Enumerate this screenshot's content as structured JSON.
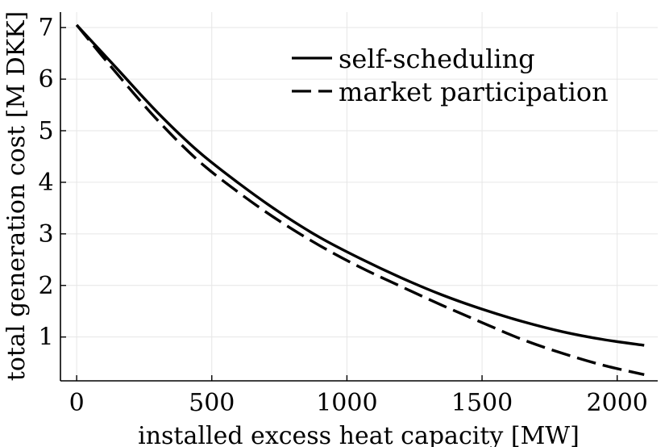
{
  "chart_data": {
    "type": "line",
    "title": "",
    "xlabel": "installed excess heat capacity [MW]",
    "ylabel": "total generation cost [M DKK]",
    "xlim": [
      -60,
      2150
    ],
    "ylim": [
      0.15,
      7.3
    ],
    "xticks": [
      0,
      500,
      1000,
      1500,
      2000
    ],
    "yticks": [
      1,
      2,
      3,
      4,
      5,
      6,
      7
    ],
    "grid": true,
    "legend_position": "top-right",
    "series": [
      {
        "name": "self-scheduling",
        "style": "solid",
        "x": [
          0,
          150,
          300,
          450,
          600,
          750,
          900,
          1050,
          1200,
          1350,
          1500,
          1650,
          1800,
          1950,
          2100
        ],
        "y": [
          7.05,
          6.2,
          5.35,
          4.6,
          3.98,
          3.42,
          2.93,
          2.52,
          2.15,
          1.82,
          1.54,
          1.3,
          1.1,
          0.95,
          0.84
        ]
      },
      {
        "name": "market participation",
        "style": "dashed",
        "x": [
          0,
          150,
          300,
          450,
          600,
          750,
          900,
          1050,
          1200,
          1350,
          1500,
          1650,
          1800,
          1950,
          2100
        ],
        "y": [
          7.05,
          6.1,
          5.2,
          4.42,
          3.8,
          3.25,
          2.77,
          2.35,
          1.98,
          1.62,
          1.28,
          0.95,
          0.68,
          0.45,
          0.27
        ]
      }
    ]
  }
}
